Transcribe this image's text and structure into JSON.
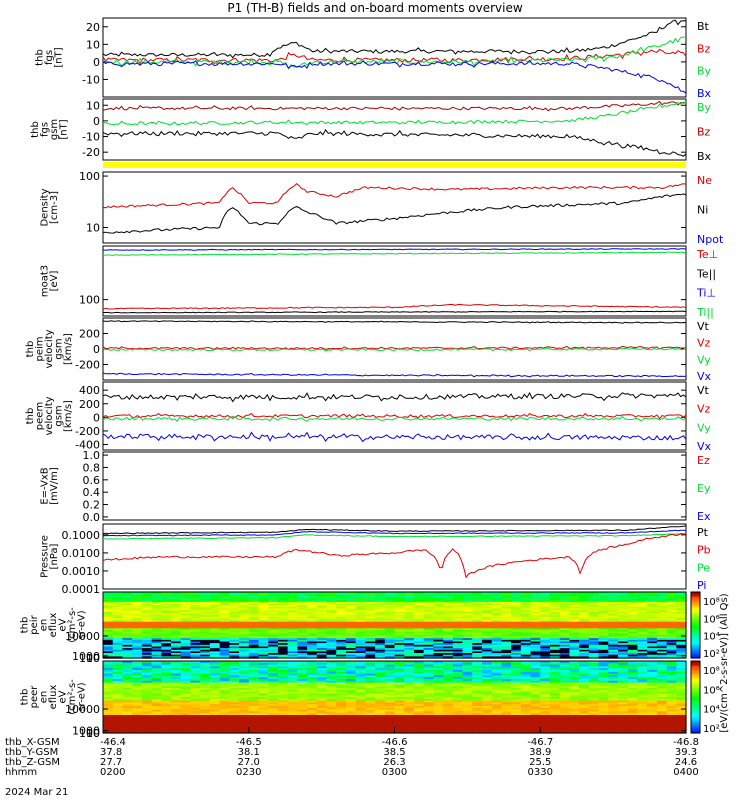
{
  "title": "P1 (TH-B) fields and on-board moments overview",
  "colors": {
    "black": "#000000",
    "red": "#e00000",
    "green": "#00dd33",
    "blue": "#0000ee",
    "dred": "#aa0000",
    "yellow": "#ffff00"
  },
  "chart_data": [
    {
      "type": "line",
      "ylabel": [
        "thb",
        "fgs",
        "[nT]"
      ],
      "ylim": [
        -20,
        25
      ],
      "yticks": [
        {
          "v": 20,
          "label": "20"
        },
        {
          "v": 10,
          "label": "10"
        },
        {
          "v": 0,
          "label": "0"
        },
        {
          "v": -10,
          "label": "-10"
        }
      ],
      "legend": [
        {
          "label": "Bt",
          "color": "black"
        },
        {
          "label": "Bz",
          "color": "red"
        },
        {
          "label": "By",
          "color": "green"
        },
        {
          "label": "Bx",
          "color": "blue"
        }
      ],
      "series": [
        {
          "name": "Bt",
          "color": "black",
          "noise": 1.0,
          "x": [
            0,
            0.28,
            0.3,
            0.33,
            0.36,
            0.5,
            0.8,
            0.86,
            0.9,
            0.95,
            0.97,
            1
          ],
          "y": [
            4,
            4,
            8,
            11,
            6,
            6,
            6,
            8,
            12,
            17,
            22,
            24
          ]
        },
        {
          "name": "Bz",
          "color": "red",
          "noise": 1.2,
          "x": [
            0,
            0.3,
            0.33,
            0.36,
            0.6,
            0.8,
            0.88,
            0.94,
            1
          ],
          "y": [
            1,
            1,
            4,
            1,
            1,
            2,
            4,
            6,
            4
          ]
        },
        {
          "name": "By",
          "color": "green",
          "noise": 1.2,
          "x": [
            0,
            0.3,
            0.33,
            0.36,
            0.6,
            0.8,
            0.88,
            0.94,
            1
          ],
          "y": [
            0,
            0,
            -3,
            0,
            0,
            1,
            3,
            8,
            14
          ]
        },
        {
          "name": "Bx",
          "color": "blue",
          "noise": 1.0,
          "x": [
            0,
            0.3,
            0.33,
            0.36,
            0.6,
            0.8,
            0.85,
            0.9,
            0.96,
            1
          ],
          "y": [
            -1,
            -1,
            -3,
            -1,
            -1,
            -1,
            -3,
            -6,
            -10,
            -18
          ]
        }
      ]
    },
    {
      "type": "line",
      "ylabel": [
        "thb",
        "fgs",
        "gsm",
        "[nT]"
      ],
      "ylim": [
        -25,
        14
      ],
      "yticks": [
        {
          "v": 10,
          "label": "10"
        },
        {
          "v": 0,
          "label": "0"
        },
        {
          "v": -10,
          "label": "-10"
        },
        {
          "v": -20,
          "label": "-20"
        }
      ],
      "legend": [
        {
          "label": "By",
          "color": "green"
        },
        {
          "label": "Bz",
          "color": "dred"
        },
        {
          "label": "Bx",
          "color": "black"
        }
      ],
      "series": [
        {
          "name": "Bz",
          "color": "dred",
          "noise": 0.9,
          "x": [
            0,
            0.3,
            0.5,
            0.8,
            0.9,
            1
          ],
          "y": [
            8,
            8,
            8,
            8,
            10,
            12
          ]
        },
        {
          "name": "By",
          "color": "green",
          "noise": 0.9,
          "x": [
            0,
            0.3,
            0.5,
            0.8,
            0.86,
            1
          ],
          "y": [
            -2,
            -1,
            -1,
            0,
            3,
            12
          ]
        },
        {
          "name": "Bx",
          "color": "black",
          "noise": 1.2,
          "x": [
            0,
            0.3,
            0.33,
            0.36,
            0.8,
            0.9,
            1
          ],
          "y": [
            -8,
            -8,
            -12,
            -8,
            -10,
            -16,
            -22
          ]
        }
      ]
    },
    {
      "type": "bar",
      "role": "flag",
      "ylabel": [],
      "ylim": [
        0,
        1
      ],
      "yticks": [],
      "legend": [],
      "series": []
    },
    {
      "type": "line",
      "log": true,
      "ylabel": [
        "Density",
        "[cm-3]"
      ],
      "ylim": [
        5,
        120
      ],
      "yticks": [
        {
          "v": 100,
          "label": "100"
        },
        {
          "v": 10,
          "label": "10"
        }
      ],
      "legend": [
        {
          "label": "Ne",
          "color": "red"
        },
        {
          "label": "Ni",
          "color": "black"
        },
        {
          "label": "Npot",
          "color": "blue"
        }
      ],
      "series": [
        {
          "name": "Ne",
          "color": "red",
          "noise": 0.05,
          "x": [
            0,
            0.2,
            0.22,
            0.25,
            0.3,
            0.33,
            0.35,
            0.4,
            0.45,
            0.6,
            0.8,
            0.96,
            1
          ],
          "y": [
            25,
            30,
            60,
            30,
            30,
            70,
            50,
            40,
            60,
            55,
            60,
            60,
            70
          ]
        },
        {
          "name": "Ni",
          "color": "black",
          "noise": 0.06,
          "x": [
            0,
            0.2,
            0.22,
            0.25,
            0.3,
            0.33,
            0.35,
            0.4,
            0.5,
            0.7,
            0.9,
            0.96,
            1
          ],
          "y": [
            8,
            10,
            25,
            12,
            12,
            25,
            20,
            12,
            15,
            25,
            30,
            40,
            45
          ]
        }
      ]
    },
    {
      "type": "line",
      "log": true,
      "ylabel": [
        "moat3",
        "[eV]"
      ],
      "ylim": [
        40,
        2000
      ],
      "yticks": [
        {
          "v": 100,
          "label": "100"
        }
      ],
      "legend": [
        {
          "label": "Te⊥",
          "color": "red"
        },
        {
          "label": "Te||",
          "color": "black"
        },
        {
          "label": "Ti⊥",
          "color": "blue"
        },
        {
          "label": "Ti||",
          "color": "green"
        }
      ],
      "series": [
        {
          "name": "Ti⊥",
          "color": "blue",
          "noise": 0.02,
          "x": [
            0,
            0.5,
            1
          ],
          "y": [
            1600,
            1650,
            1700
          ]
        },
        {
          "name": "Ti||",
          "color": "green",
          "noise": 0.02,
          "x": [
            0,
            0.5,
            1
          ],
          "y": [
            1200,
            1300,
            1400
          ]
        },
        {
          "name": "Te⊥",
          "color": "red",
          "noise": 0.03,
          "x": [
            0,
            0.5,
            0.6,
            0.8,
            1
          ],
          "y": [
            60,
            65,
            75,
            70,
            65
          ]
        },
        {
          "name": "Te||",
          "color": "black",
          "noise": 0.02,
          "x": [
            0,
            0.5,
            1
          ],
          "y": [
            48,
            50,
            52
          ]
        }
      ]
    },
    {
      "type": "line",
      "ylabel": [
        "thb",
        "peim",
        "velocity",
        "gsm",
        "[km/s]"
      ],
      "ylim": [
        -400,
        400
      ],
      "yticks": [
        {
          "v": 200,
          "label": "200"
        },
        {
          "v": 0,
          "label": "0"
        },
        {
          "v": -200,
          "label": "-200"
        }
      ],
      "legend": [
        {
          "label": "Vt",
          "color": "black"
        },
        {
          "label": "Vz",
          "color": "red"
        },
        {
          "label": "Vy",
          "color": "green"
        },
        {
          "label": "Vx",
          "color": "blue"
        }
      ],
      "series": [
        {
          "name": "Vt",
          "color": "black",
          "noise": 5,
          "x": [
            0,
            0.5,
            1
          ],
          "y": [
            360,
            350,
            340
          ]
        },
        {
          "name": "Vz",
          "color": "red",
          "noise": 10,
          "x": [
            0,
            0.5,
            1
          ],
          "y": [
            10,
            10,
            20
          ]
        },
        {
          "name": "Vy",
          "color": "green",
          "noise": 10,
          "x": [
            0,
            0.5,
            1
          ],
          "y": [
            -10,
            -10,
            0
          ]
        },
        {
          "name": "Vx",
          "color": "blue",
          "noise": 8,
          "x": [
            0,
            0.5,
            1
          ],
          "y": [
            -320,
            -340,
            -350
          ]
        }
      ]
    },
    {
      "type": "line",
      "ylabel": [
        "thb",
        "peem",
        "velocity",
        "gsm",
        "[km/s]"
      ],
      "ylim": [
        -480,
        520
      ],
      "yticks": [
        {
          "v": 400,
          "label": "400"
        },
        {
          "v": 200,
          "label": "200"
        },
        {
          "v": 0,
          "label": "0"
        },
        {
          "v": -200,
          "label": "-200"
        },
        {
          "v": -400,
          "label": "-400"
        }
      ],
      "legend": [
        {
          "label": "Vt",
          "color": "black"
        },
        {
          "label": "Vz",
          "color": "red"
        },
        {
          "label": "Vy",
          "color": "green"
        },
        {
          "label": "Vx",
          "color": "blue"
        }
      ],
      "series": [
        {
          "name": "Vt",
          "color": "black",
          "noise": 35,
          "x": [
            0,
            0.5,
            1
          ],
          "y": [
            300,
            300,
            320
          ]
        },
        {
          "name": "Vz",
          "color": "red",
          "noise": 20,
          "x": [
            0,
            0.5,
            1
          ],
          "y": [
            20,
            20,
            20
          ]
        },
        {
          "name": "Vy",
          "color": "green",
          "noise": 20,
          "x": [
            0,
            0.5,
            1
          ],
          "y": [
            -20,
            -20,
            -20
          ]
        },
        {
          "name": "Vx",
          "color": "blue",
          "noise": 35,
          "x": [
            0,
            0.5,
            1
          ],
          "y": [
            -280,
            -290,
            -300
          ]
        }
      ]
    },
    {
      "type": "line",
      "ylabel": [
        "E=-VxB",
        "[mV/m]"
      ],
      "ylim": [
        -0.05,
        1.05
      ],
      "yticks": [
        {
          "v": 1.0,
          "label": "1.0"
        },
        {
          "v": 0.8,
          "label": "0.8"
        },
        {
          "v": 0.6,
          "label": "0.6"
        },
        {
          "v": 0.4,
          "label": "0.4"
        },
        {
          "v": 0.2,
          "label": "0.2"
        },
        {
          "v": 0.0,
          "label": "0.0"
        }
      ],
      "legend": [
        {
          "label": "Ez",
          "color": "red"
        },
        {
          "label": "Ey",
          "color": "green"
        },
        {
          "label": "Ex",
          "color": "blue"
        }
      ],
      "series": []
    },
    {
      "type": "line",
      "log": true,
      "ylabel": [
        "Pressure",
        "[nPa]"
      ],
      "ylim": [
        0.0001,
        0.4
      ],
      "yticks": [
        {
          "v": 0.1,
          "label": "0.1000"
        },
        {
          "v": 0.01,
          "label": "0.0100"
        },
        {
          "v": 0.001,
          "label": "0.0010"
        },
        {
          "v": 0.0001,
          "label": "0.0001"
        }
      ],
      "legend": [
        {
          "label": "Pt",
          "color": "black"
        },
        {
          "label": "Pb",
          "color": "red"
        },
        {
          "label": "Pe",
          "color": "green"
        },
        {
          "label": "Pi",
          "color": "blue"
        }
      ],
      "series": [
        {
          "name": "Pt",
          "color": "black",
          "noise": 0.05,
          "x": [
            0,
            0.3,
            0.35,
            0.5,
            0.9,
            0.96,
            1
          ],
          "y": [
            0.12,
            0.14,
            0.2,
            0.16,
            0.18,
            0.25,
            0.3
          ]
        },
        {
          "name": "Pi",
          "color": "blue",
          "noise": 0.05,
          "x": [
            0,
            0.3,
            0.35,
            0.5,
            0.9,
            1
          ],
          "y": [
            0.09,
            0.1,
            0.15,
            0.12,
            0.13,
            0.18
          ]
        },
        {
          "name": "Pe",
          "color": "green",
          "noise": 0.05,
          "x": [
            0,
            0.3,
            0.35,
            0.5,
            0.9,
            1
          ],
          "y": [
            0.06,
            0.07,
            0.1,
            0.08,
            0.09,
            0.12
          ]
        },
        {
          "name": "Pb",
          "color": "red",
          "noise": 0.12,
          "x": [
            0,
            0.1,
            0.3,
            0.33,
            0.4,
            0.5,
            0.55,
            0.58,
            0.6,
            0.62,
            0.8,
            0.82,
            0.84,
            0.9,
            1
          ],
          "y": [
            0.004,
            0.006,
            0.006,
            0.015,
            0.007,
            0.01,
            0.015,
            0.0002,
            0.015,
            0.0004,
            0.006,
            0.0003,
            0.01,
            0.03,
            0.12
          ]
        }
      ]
    },
    {
      "type": "heatmap",
      "ylabel": [
        "thb",
        "peir",
        "en",
        "eflux",
        "eV",
        "(cm²-s-",
        "sr-eV)"
      ],
      "ylim": [
        5,
        30000
      ],
      "yticks": [
        {
          "v": 10000,
          "label": "10000"
        },
        {
          "v": 1000,
          "label": "1000"
        },
        {
          "v": 100,
          "label": "100"
        },
        {
          "v": 10,
          "label": "10"
        }
      ],
      "legend": [],
      "series": []
    },
    {
      "type": "heatmap",
      "ylabel": [
        "thb",
        "peer",
        "en",
        "eflux",
        "eV",
        "(cm²-s-",
        "sr-eV)"
      ],
      "ylim": [
        5,
        30000
      ],
      "yticks": [
        {
          "v": 10000,
          "label": "10000"
        },
        {
          "v": 1000,
          "label": "1000"
        },
        {
          "v": 100,
          "label": "100"
        },
        {
          "v": 10,
          "label": "10"
        }
      ],
      "legend": [],
      "series": []
    }
  ],
  "colorbars": [
    {
      "labels": [
        "10⁸",
        "10⁶",
        "10⁴",
        "10²"
      ]
    },
    {
      "labels": [
        "10⁸",
        "10⁶",
        "10⁴",
        "10²"
      ]
    }
  ],
  "colorbar_title": "[eV/(cm^2-s-sr-eV)] (All Qs)",
  "xaxis": {
    "row_labels": [
      "thb_X-GSM",
      "thb_Y-GSM",
      "thb_Z-GSM",
      "hhmm"
    ],
    "date": "2024 Mar 21",
    "ticks": [
      {
        "rows": [
          "-46.4",
          "37.8",
          "27.7",
          "0200"
        ]
      },
      {
        "rows": [
          "-46.5",
          "38.1",
          "27.0",
          "0230"
        ]
      },
      {
        "rows": [
          "-46.6",
          "38.5",
          "26.3",
          "0300"
        ]
      },
      {
        "rows": [
          "-46.7",
          "38.9",
          "25.5",
          "0330"
        ]
      },
      {
        "rows": [
          "-46.8",
          "39.3",
          "24.6",
          "0400"
        ]
      }
    ]
  }
}
